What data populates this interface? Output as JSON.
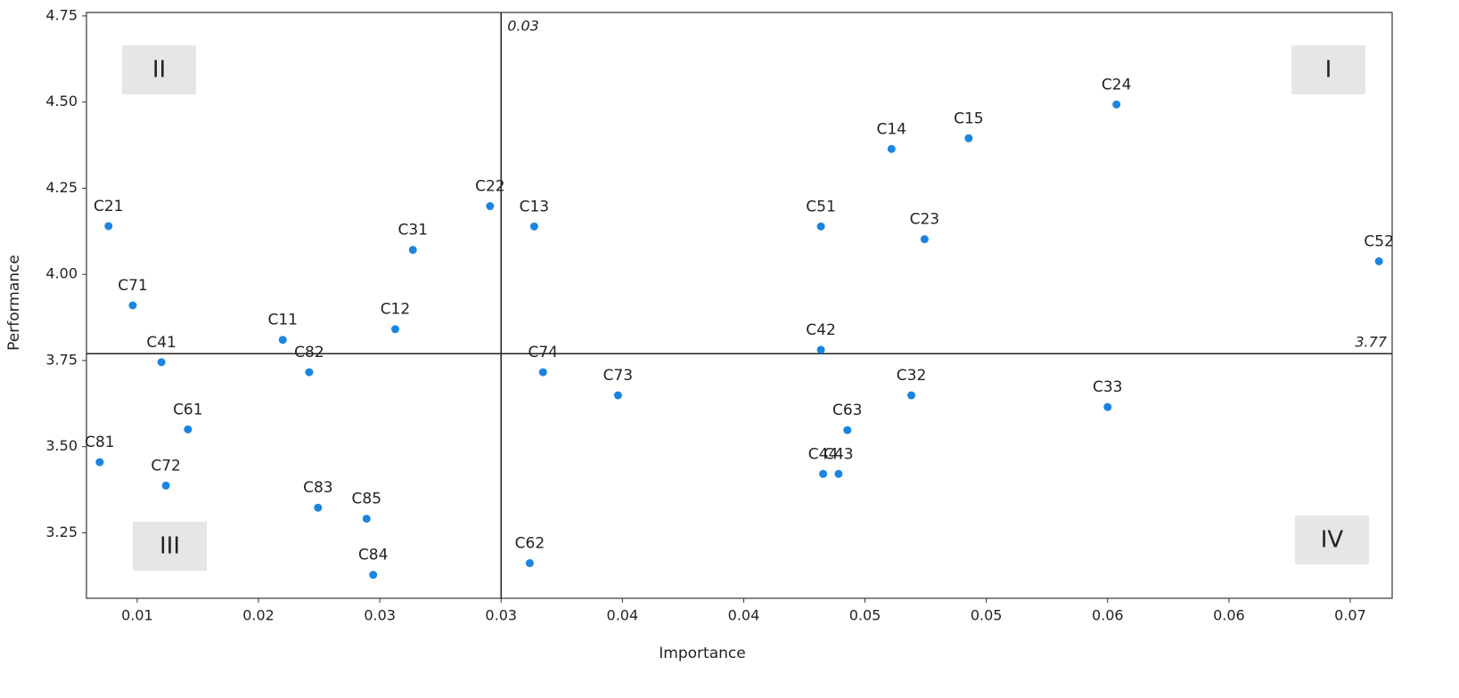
{
  "chart_data": {
    "type": "scatter",
    "x_label": "Importance",
    "y_label": "Performance",
    "color": "#1a85e0",
    "names": [
      "C21",
      "C71",
      "C41",
      "C61",
      "C81",
      "C72",
      "C11",
      "C82",
      "C12",
      "C31",
      "C22",
      "C83",
      "C85",
      "C84",
      "C13",
      "C74",
      "C62",
      "C73",
      "C51",
      "C42",
      "C14",
      "C15",
      "C24",
      "C23",
      "C52",
      "C32",
      "C33",
      "C63",
      "C44",
      "C43"
    ],
    "x": [
      0.0132,
      0.0143,
      0.0156,
      0.0168,
      0.0128,
      0.0158,
      0.0211,
      0.0223,
      0.0262,
      0.027,
      0.0305,
      0.0227,
      0.0249,
      0.0252,
      0.0325,
      0.0329,
      0.0323,
      0.0363,
      0.0455,
      0.0455,
      0.0487,
      0.0522,
      0.0589,
      0.0502,
      0.0708,
      0.0496,
      0.0585,
      0.0467,
      0.0456,
      0.0463
    ],
    "y": [
      4.14,
      3.91,
      3.745,
      3.55,
      3.455,
      3.387,
      3.81,
      3.716,
      3.841,
      4.071,
      4.198,
      3.323,
      3.291,
      3.128,
      4.139,
      3.716,
      3.162,
      3.649,
      4.139,
      3.781,
      4.364,
      4.395,
      4.493,
      4.102,
      4.038,
      3.649,
      3.615,
      3.548,
      3.421,
      3.421
    ],
    "xlim": [
      0.0122,
      0.0714
    ],
    "ylim": [
      3.06,
      4.76
    ],
    "xticks": [
      {
        "value": 0.0145,
        "label": "0.01"
      },
      {
        "value": 0.02,
        "label": "0.02"
      },
      {
        "value": 0.0255,
        "label": "0.03"
      },
      {
        "value": 0.031,
        "label": "0.03"
      },
      {
        "value": 0.0365,
        "label": "0.04"
      },
      {
        "value": 0.042,
        "label": "0.04"
      },
      {
        "value": 0.0475,
        "label": "0.05"
      },
      {
        "value": 0.053,
        "label": "0.05"
      },
      {
        "value": 0.0585,
        "label": "0.06"
      },
      {
        "value": 0.064,
        "label": "0.06"
      },
      {
        "value": 0.0695,
        "label": "0.07"
      }
    ],
    "yticks": [
      3.25,
      {
        "value": 3.5,
        "label": "3.50"
      },
      3.75,
      {
        "value": 4,
        "label": "4.00"
      },
      4.25,
      {
        "value": 4.5,
        "label": "4.50"
      },
      4.75
    ],
    "vline": {
      "value": 0.031,
      "label": "0.03"
    },
    "hline": {
      "value": 3.77,
      "label": "3.77"
    },
    "quadrants": [
      "I",
      "II",
      "III",
      "IV"
    ]
  }
}
